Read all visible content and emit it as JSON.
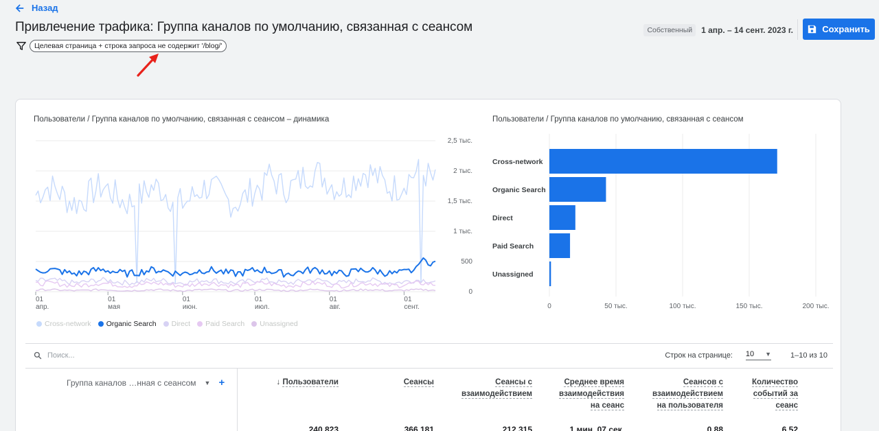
{
  "header": {
    "back_label": "Назад",
    "title": "Привлечение трафика: Группа каналов по умолчанию, связанная с сеансом",
    "filter_chip": "Целевая страница + строка запроса не содержит '/blog/'",
    "date_badge": "Собственный",
    "date_range": "1 апр. – 14 сент. 2023 г.",
    "save_label": "Сохранить"
  },
  "line_chart": {
    "title": "Пользователи / Группа каналов по умолчанию, связанная с сеансом – динамика",
    "y_ticks": [
      "2,5 тыс.",
      "2 тыс.",
      "1,5 тыс.",
      "1 тыс.",
      "500",
      "0"
    ],
    "x_ticks": [
      {
        "day": "01",
        "month": "апр."
      },
      {
        "day": "01",
        "month": "мая"
      },
      {
        "day": "01",
        "month": "июн."
      },
      {
        "day": "01",
        "month": "июл."
      },
      {
        "day": "01",
        "month": "авг."
      },
      {
        "day": "01",
        "month": "сент."
      }
    ],
    "legend": [
      {
        "label": "Cross-network",
        "color": "#c6dafc",
        "active": false
      },
      {
        "label": "Organic Search",
        "color": "#1a73e8",
        "active": true
      },
      {
        "label": "Direct",
        "color": "#d7d2f4",
        "active": false
      },
      {
        "label": "Paid Search",
        "color": "#e6c9f2",
        "active": false
      },
      {
        "label": "Unassigned",
        "color": "#dcc5ea",
        "active": false
      }
    ]
  },
  "bar_chart": {
    "title": "Пользователи / Группа каналов по умолчанию, связанная с сеансом",
    "x_ticks": [
      "0",
      "50 тыс.",
      "100 тыс.",
      "150 тыс.",
      "200 тыс."
    ]
  },
  "chart_data": [
    {
      "type": "line",
      "title": "Пользователи / Группа каналов по умолчанию, связанная с сеансом – динамика",
      "x_range": [
        "2023-04-01",
        "2023-09-14"
      ],
      "ylim": [
        0,
        2500
      ],
      "series": [
        {
          "name": "Cross-network",
          "color": "#c6dafc",
          "level": 1600,
          "noise": 260
        },
        {
          "name": "Organic Search",
          "color": "#1a73e8",
          "level": 330,
          "noise": 60
        },
        {
          "name": "Direct",
          "color": "#d7d2f4",
          "level": 170,
          "noise": 45
        },
        {
          "name": "Paid Search",
          "color": "#e6c9f2",
          "level": 120,
          "noise": 40
        },
        {
          "name": "Unassigned",
          "color": "#dcc5ea",
          "level": 25,
          "noise": 15
        }
      ]
    },
    {
      "type": "bar",
      "title": "Пользователи / Группа каналов по умолчанию, связанная с сеансом",
      "categories": [
        "Cross-network",
        "Organic Search",
        "Direct",
        "Paid Search",
        "Unassigned"
      ],
      "values": [
        171000,
        42500,
        19500,
        15500,
        1200
      ],
      "xlim": [
        0,
        200000
      ],
      "color": "#1a73e8"
    }
  ],
  "table": {
    "search_placeholder": "Поиск...",
    "rows_label": "Строк на странице:",
    "rows_value": "10",
    "pager": "1–10 из 10",
    "dimension_header": "Группа каналов …нная с сеансом",
    "metrics": [
      {
        "header": [
          "Пользователи"
        ],
        "total": "240 823",
        "sorted": true
      },
      {
        "header": [
          "Сеансы"
        ],
        "total": "366 181"
      },
      {
        "header": [
          "Сеансы с",
          "взаимодействием"
        ],
        "total": "212 315"
      },
      {
        "header": [
          "Среднее время",
          "взаимодействия",
          "на сеанс"
        ],
        "total": "1 мин. 07 сек."
      },
      {
        "header": [
          "Сеансов с",
          "взаимодействием",
          "на пользователя"
        ],
        "total": "0,88"
      },
      {
        "header": [
          "Количество",
          "событий за",
          "сеанс"
        ],
        "total": "6,52"
      }
    ]
  }
}
